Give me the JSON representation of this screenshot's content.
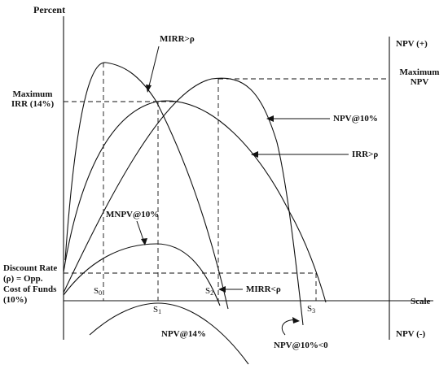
{
  "axis": {
    "y_title": "Percent",
    "x_title": "Scale",
    "right_top": "NPV (+)",
    "right_bottom": "NPV (-)",
    "max_npv_line1": "Maximum",
    "max_npv_line2": "NPV",
    "max_irr_line1": "Maximum",
    "max_irr_line2": "IRR (14%)",
    "discount_line1": "Discount Rate",
    "discount_line2": "(ρ) = Opp.",
    "discount_line3": "Cost of Funds",
    "discount_line4": "(10%)"
  },
  "curves": {
    "mirr_gt": "MIRR>ρ",
    "mirr_lt": "MIRR<ρ",
    "npv10": "NPV@10%",
    "irr_gt": "IRR>ρ",
    "mnpv10": "MNPV@10%",
    "npv14": "NPV@14%",
    "npv10_neg": "NPV@10%<0"
  },
  "scale_points": {
    "s0": "S",
    "s0_sub": "0",
    "s1": "S",
    "s1_sub": "1",
    "s2": "S",
    "s2_sub": "2",
    "s3": "S",
    "s3_sub": "3"
  },
  "colors": {
    "ink": "#111111",
    "background": "#ffffff"
  }
}
